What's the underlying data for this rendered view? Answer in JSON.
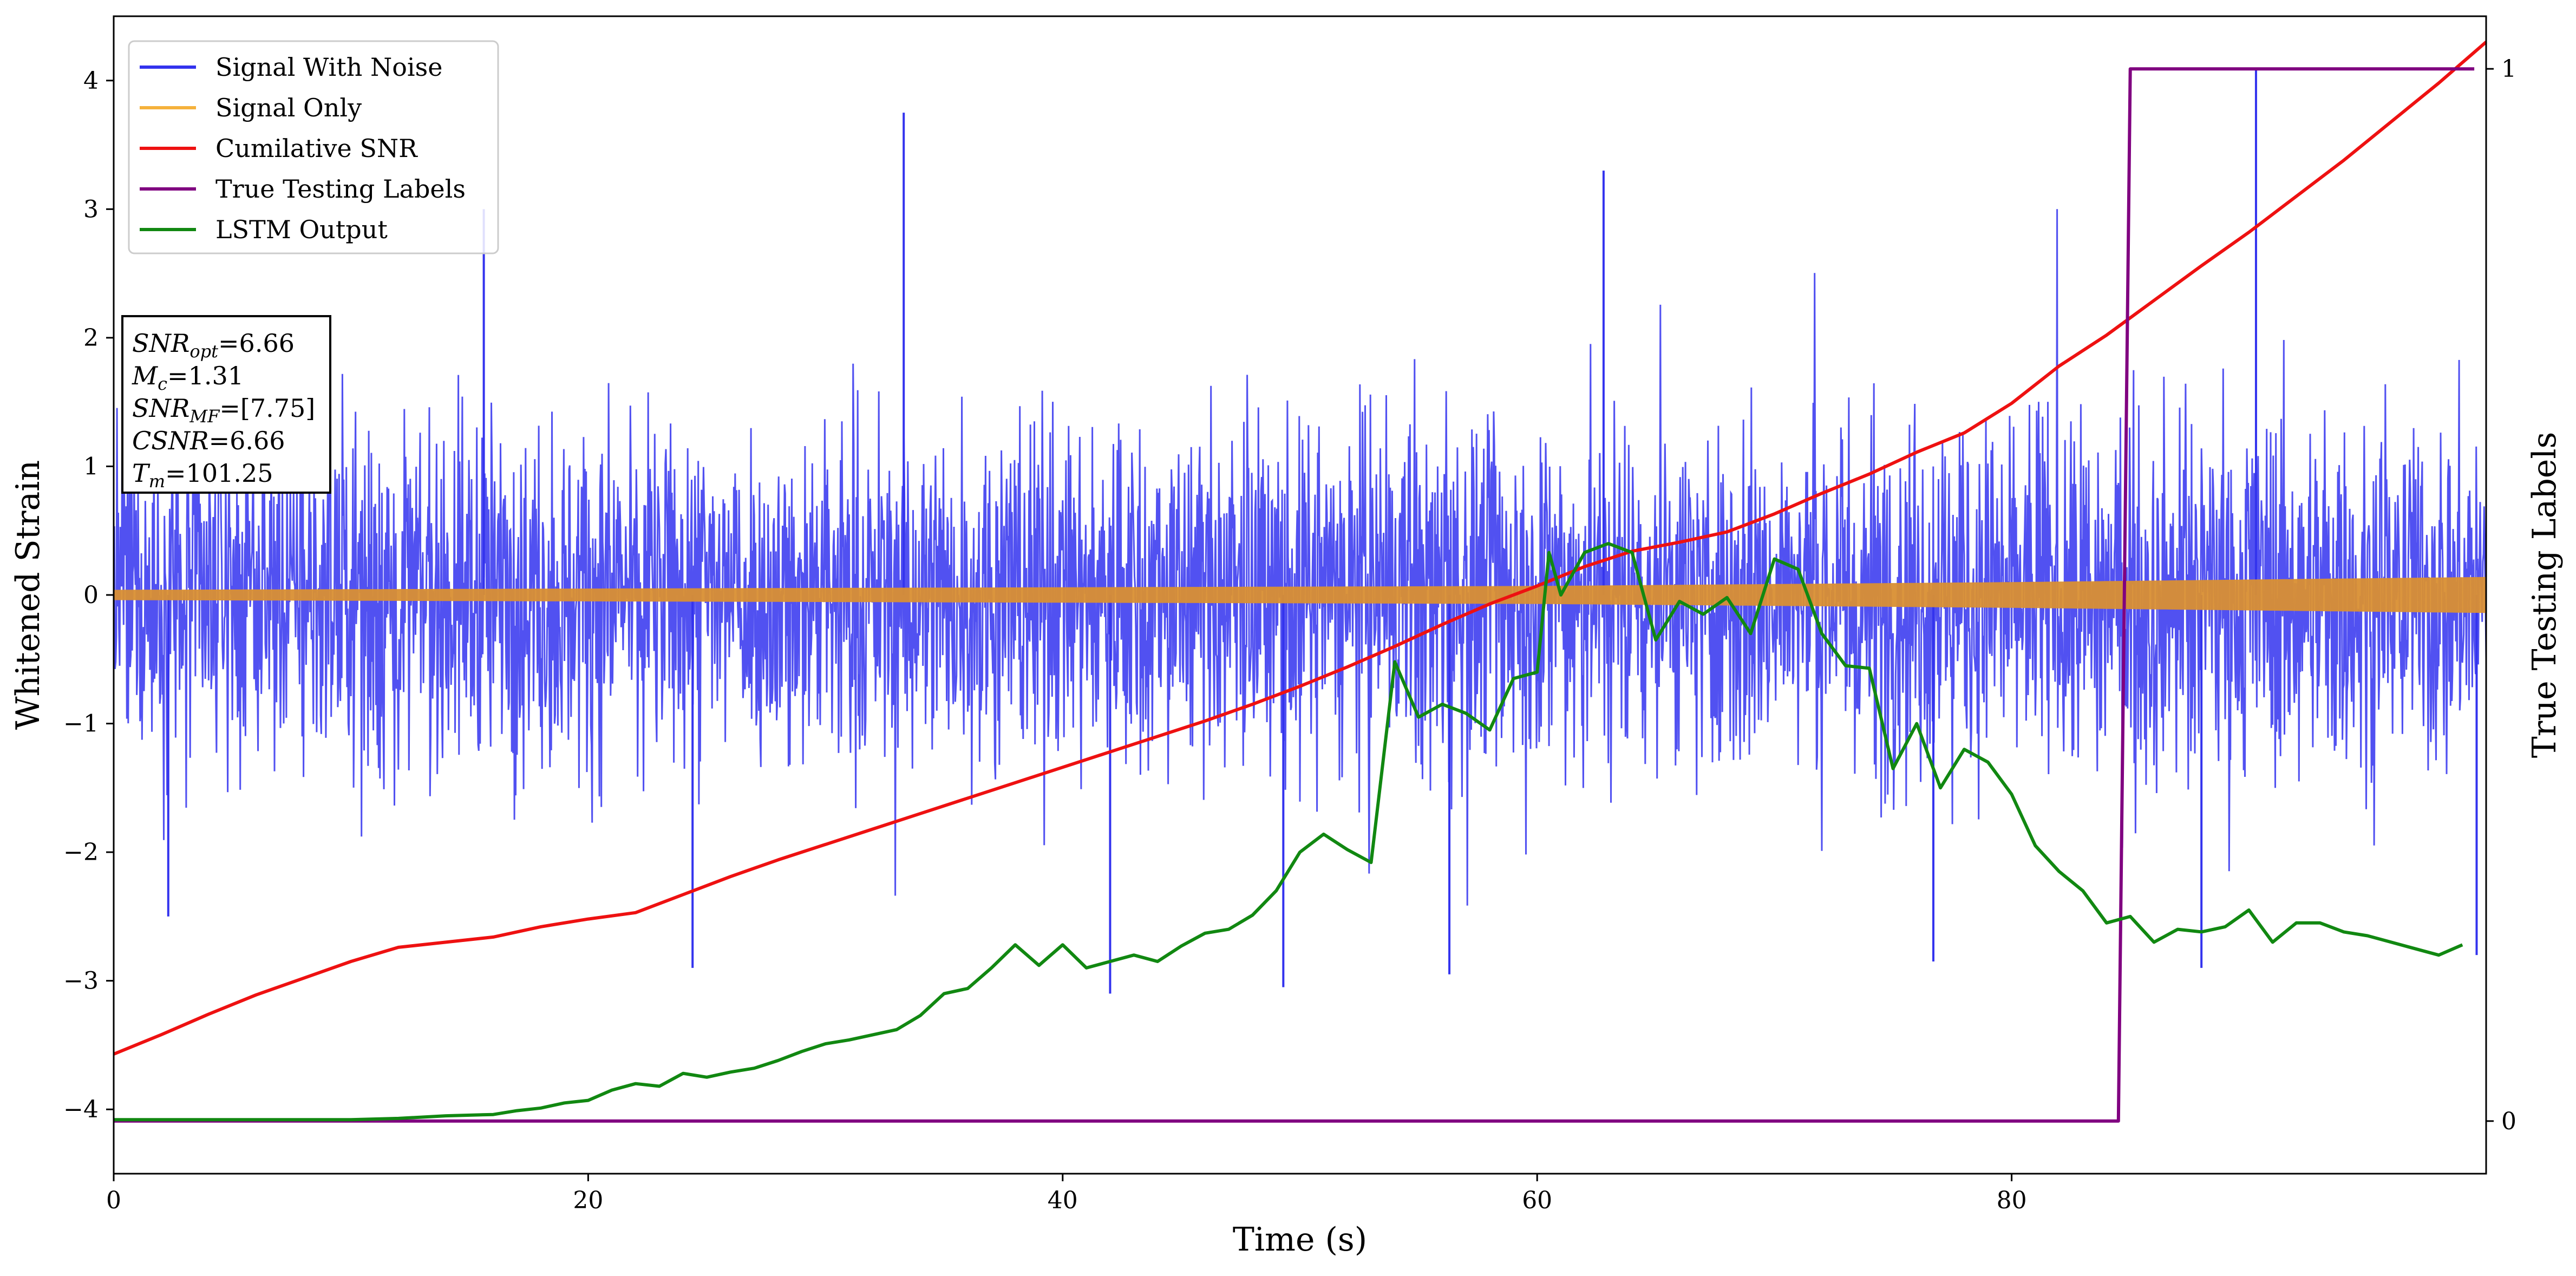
{
  "chart_data": {
    "type": "line",
    "title": "",
    "xlabel": "Time (s)",
    "ylabel": "Whitened Strain",
    "y2label": "True Testing Labels",
    "xlim": [
      0,
      100
    ],
    "ylim": [
      -4.5,
      4.5
    ],
    "y2lim": [
      -0.05,
      1.05
    ],
    "x_ticks": [
      0,
      20,
      40,
      60,
      80
    ],
    "y_ticks": [
      -4,
      -3,
      -2,
      -1,
      0,
      1,
      2,
      3,
      4
    ],
    "y2_ticks": [
      0,
      1
    ],
    "grid": false,
    "legend_position": "upper-left",
    "legend": [
      {
        "label": "Signal With Noise",
        "color": "#3333ee"
      },
      {
        "label": "Signal Only",
        "color": "#f5b23c"
      },
      {
        "label": "Cumilative SNR",
        "color": "#ee1111"
      },
      {
        "label": "True Testing Labels",
        "color": "#800080"
      },
      {
        "label": "LSTM Output",
        "color": "#118811"
      }
    ],
    "annotation": [
      {
        "name": "SNR",
        "sub": "opt",
        "value": "=6.66"
      },
      {
        "name": "M",
        "sub": "c",
        "value": "=1.31"
      },
      {
        "name": "SNR",
        "sub": "MF",
        "value": "=[7.75]"
      },
      {
        "name": "CSNR",
        "sub": "",
        "value": "=6.66"
      },
      {
        "name": "T",
        "sub": "m",
        "value": "=101.25"
      }
    ],
    "series": [
      {
        "name": "Signal With Noise",
        "axis": "left",
        "color": "#3333ee",
        "description": "dense noisy signal roughly between -2.6 and 4.1 with tall spikes",
        "spikes": [
          [
            33.3,
            3.75
          ],
          [
            90.3,
            4.1
          ],
          [
            49.3,
            -3.05
          ],
          [
            42.0,
            -3.1
          ],
          [
            24.4,
            -2.9
          ],
          [
            56.3,
            -2.95
          ],
          [
            76.7,
            -2.85
          ],
          [
            88.0,
            -2.9
          ],
          [
            99.6,
            -2.8
          ],
          [
            15.6,
            3.0
          ],
          [
            62.8,
            3.3
          ],
          [
            2.3,
            -2.5
          ]
        ]
      },
      {
        "name": "Signal Only",
        "axis": "left",
        "color": "#f5b23c",
        "envelope": {
          "x": [
            0,
            20,
            40,
            60,
            80,
            100
          ],
          "amp": [
            0.04,
            0.05,
            0.06,
            0.07,
            0.1,
            0.14
          ]
        }
      },
      {
        "name": "Cumilative SNR",
        "axis": "left",
        "color": "#ee1111",
        "x": [
          0,
          2,
          4,
          6,
          8,
          10,
          12,
          14,
          16,
          18,
          20,
          22,
          24,
          26,
          28,
          30,
          32,
          34,
          36,
          38,
          40,
          42,
          44,
          46,
          48,
          50,
          52,
          54,
          56,
          58,
          60,
          62,
          64,
          66,
          68,
          70,
          72,
          74,
          76,
          78,
          80,
          82,
          84,
          86,
          88,
          90,
          92,
          94,
          96,
          98,
          100
        ],
        "y": [
          -3.57,
          -3.42,
          -3.26,
          -3.11,
          -2.98,
          -2.85,
          -2.74,
          -2.7,
          -2.66,
          -2.58,
          -2.52,
          -2.47,
          -2.33,
          -2.19,
          -2.06,
          -1.94,
          -1.82,
          -1.7,
          -1.58,
          -1.46,
          -1.34,
          -1.22,
          -1.1,
          -0.98,
          -0.85,
          -0.71,
          -0.56,
          -0.4,
          -0.23,
          -0.07,
          0.07,
          0.22,
          0.34,
          0.41,
          0.49,
          0.63,
          0.79,
          0.94,
          1.11,
          1.26,
          1.49,
          1.78,
          2.02,
          2.29,
          2.56,
          2.82,
          3.1,
          3.38,
          3.68,
          3.98,
          4.3
        ]
      },
      {
        "name": "True Testing Labels",
        "axis": "right",
        "color": "#800080",
        "x": [
          0,
          84.5,
          85.0,
          99.5
        ],
        "y": [
          0,
          0,
          1,
          1
        ]
      },
      {
        "name": "LSTM Output",
        "axis": "left",
        "color": "#118811",
        "x": [
          0,
          5,
          10,
          12,
          14,
          16,
          17,
          18,
          19,
          20,
          21,
          22,
          23,
          24,
          25,
          26,
          27,
          28,
          29,
          30,
          31,
          32,
          33,
          34,
          35,
          36,
          37,
          38,
          39,
          40,
          41,
          42,
          43,
          44,
          45,
          46,
          47,
          48,
          49,
          50,
          51,
          52,
          53,
          54,
          55,
          56,
          57,
          58,
          59,
          60,
          60.5,
          61,
          62,
          63,
          64,
          65,
          66,
          67,
          68,
          69,
          70,
          71,
          72,
          73,
          74,
          75,
          76,
          77,
          78,
          79,
          80,
          81,
          82,
          83,
          84,
          85,
          86,
          87,
          88,
          89,
          90,
          91,
          92,
          93,
          94,
          95,
          96,
          97,
          98,
          99
        ],
        "y": [
          -4.08,
          -4.08,
          -4.08,
          -4.07,
          -4.05,
          -4.04,
          -4.01,
          -3.99,
          -3.95,
          -3.93,
          -3.85,
          -3.8,
          -3.82,
          -3.72,
          -3.75,
          -3.71,
          -3.68,
          -3.62,
          -3.55,
          -3.49,
          -3.46,
          -3.42,
          -3.38,
          -3.27,
          -3.1,
          -3.06,
          -2.9,
          -2.72,
          -2.88,
          -2.72,
          -2.9,
          -2.85,
          -2.8,
          -2.85,
          -2.73,
          -2.63,
          -2.6,
          -2.49,
          -2.3,
          -2.0,
          -1.86,
          -1.98,
          -2.08,
          -0.52,
          -0.95,
          -0.85,
          -0.92,
          -1.05,
          -0.65,
          -0.6,
          0.33,
          0.0,
          0.33,
          0.4,
          0.33,
          -0.35,
          -0.05,
          -0.15,
          -0.02,
          -0.3,
          0.28,
          0.2,
          -0.3,
          -0.55,
          -0.57,
          -1.35,
          -1.0,
          -1.5,
          -1.2,
          -1.3,
          -1.55,
          -1.95,
          -2.15,
          -2.3,
          -2.55,
          -2.5,
          -2.7,
          -2.6,
          -2.62,
          -2.58,
          -2.45,
          -2.7,
          -2.55,
          -2.55,
          -2.62,
          -2.65,
          -2.7,
          -2.75,
          -2.8,
          -2.72
        ]
      }
    ]
  }
}
